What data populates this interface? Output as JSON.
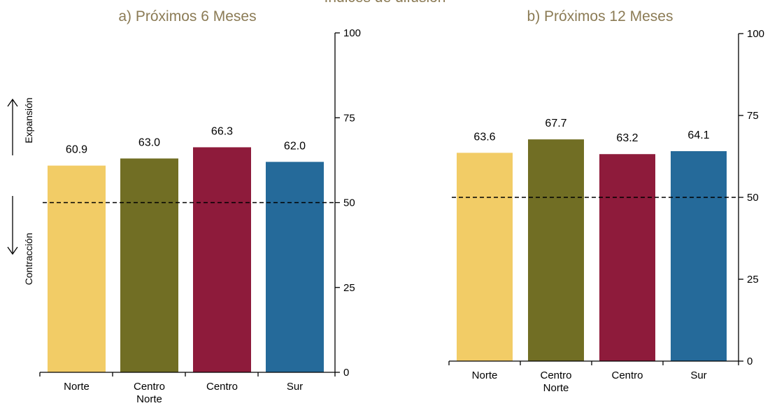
{
  "main_title": "Índices de difusión",
  "side_labels": {
    "up": "Expansión",
    "down": "Contracción"
  },
  "colors": {
    "Norte": "#F2CC66",
    "Centro Norte": "#716E24",
    "Centro": "#8E1B3B",
    "Sur": "#256A9A",
    "title": "#8B7B55"
  },
  "chart_data": [
    {
      "type": "bar",
      "title": "a) Próximos 6 Meses",
      "categories": [
        "Norte",
        "Centro Norte",
        "Centro",
        "Sur"
      ],
      "category_lines": [
        [
          "Norte"
        ],
        [
          "Centro",
          "Norte"
        ],
        [
          "Centro"
        ],
        [
          "Sur"
        ]
      ],
      "values": [
        60.9,
        63.0,
        66.3,
        62.0
      ],
      "value_labels": [
        "60.9",
        "63.0",
        "66.3",
        "62.0"
      ],
      "ylim": [
        0,
        100
      ],
      "yticks": [
        0,
        25,
        50,
        75,
        100
      ],
      "y_axis_position": "right",
      "reference_line": 50,
      "grid": false,
      "legend": "none"
    },
    {
      "type": "bar",
      "title": "b) Próximos 12 Meses",
      "categories": [
        "Norte",
        "Centro Norte",
        "Centro",
        "Sur"
      ],
      "category_lines": [
        [
          "Norte"
        ],
        [
          "Centro",
          "Norte"
        ],
        [
          "Centro"
        ],
        [
          "Sur"
        ]
      ],
      "values": [
        63.6,
        67.7,
        63.2,
        64.1
      ],
      "value_labels": [
        "63.6",
        "67.7",
        "63.2",
        "64.1"
      ],
      "ylim": [
        0,
        100
      ],
      "yticks": [
        0,
        25,
        50,
        75,
        100
      ],
      "y_axis_position": "right",
      "reference_line": 50,
      "grid": false,
      "legend": "none"
    }
  ]
}
